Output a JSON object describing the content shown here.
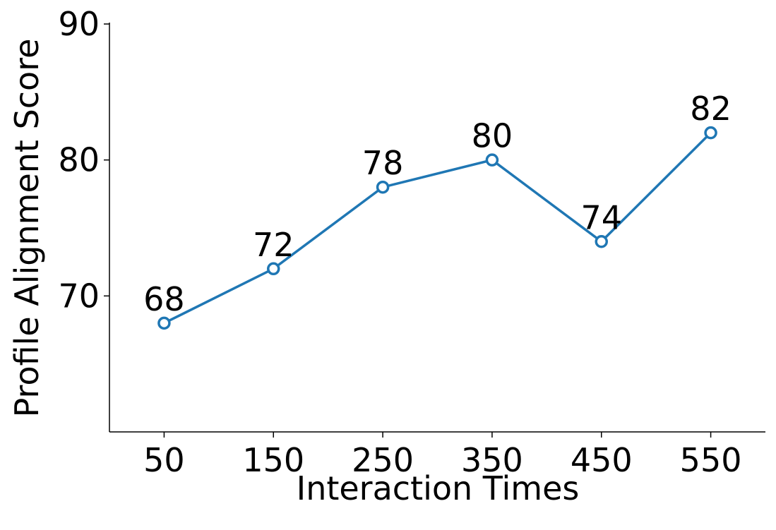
{
  "chart_data": {
    "type": "line",
    "x_label": "Interaction Times",
    "y_label": "Profile Alignment Score",
    "x": [
      50,
      150,
      250,
      350,
      450,
      550
    ],
    "series": [
      {
        "name": "Profile Alignment Score",
        "color": "#1f77b4",
        "values": [
          68,
          72,
          78,
          80,
          74,
          82
        ]
      }
    ],
    "xlim": [
      0,
      600
    ],
    "xticks": [
      50,
      150,
      250,
      350,
      450,
      550
    ],
    "ylim": [
      60,
      90
    ],
    "yticks": [
      70,
      80,
      90
    ],
    "grid": false
  }
}
